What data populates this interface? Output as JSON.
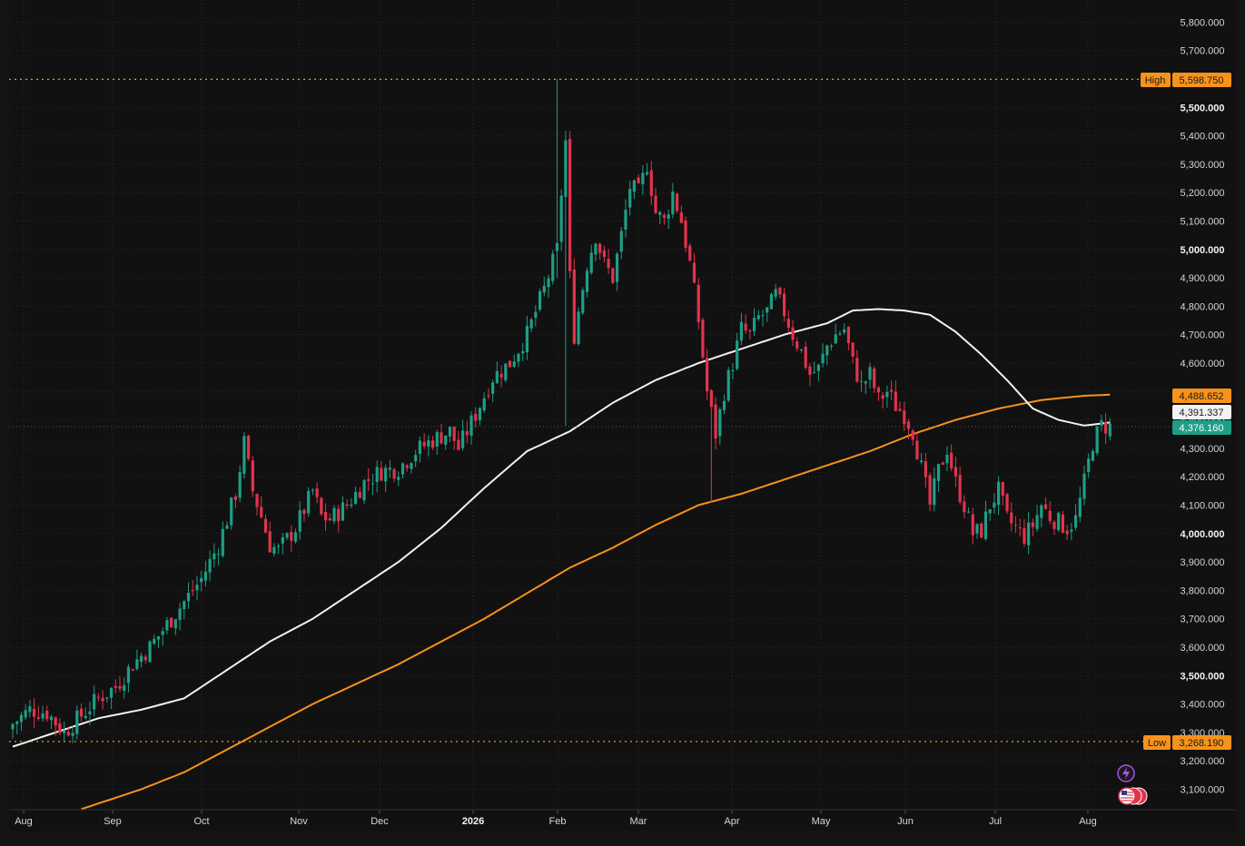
{
  "colors": {
    "background": "#141414",
    "plot_background": "#111111",
    "grid": "#2a2a2a",
    "up": "#1e9e85",
    "down": "#e2334d",
    "ma_fast": "#f2f2f2",
    "ma_slow": "#f7931a",
    "high_low_line": "#f7931a",
    "last_price_badge": "#1e9e85"
  },
  "icons": [
    "lightning-icon",
    "us-flag-icon"
  ],
  "badges": {
    "high_label": "High",
    "high_value": "5,598.750",
    "low_label": "Low",
    "low_value": "3,268.190",
    "ma_slow_value": "4,488.652",
    "ma_fast_value": "4,391.337",
    "last_value": "4,376.160"
  },
  "chart_data": {
    "type": "candlestick",
    "x_ticks": [
      "Aug",
      "Sep",
      "Oct",
      "Nov",
      "Dec",
      "2026",
      "Feb",
      "Mar",
      "Apr",
      "May",
      "Jun",
      "Jul",
      "Aug"
    ],
    "y_ticks": [
      "3,100.000",
      "3,200.000",
      "3,300.000",
      "3,400.000",
      "3,500.000",
      "3,600.000",
      "3,700.000",
      "3,800.000",
      "3,900.000",
      "4,000.000",
      "4,100.000",
      "4,200.000",
      "4,300.000",
      "4,400.000",
      "4,500.000",
      "4,600.000",
      "4,700.000",
      "4,800.000",
      "4,900.000",
      "5,000.000",
      "5,100.000",
      "5,200.000",
      "5,300.000",
      "5,400.000",
      "5,500.000",
      "5,600.000",
      "5,700.000",
      "5,800.000"
    ],
    "bold_y_ticks": [
      "3,500.000",
      "4,000.000",
      "5,000.000",
      "5,500.000"
    ],
    "ylim": [
      3030,
      5850
    ],
    "high": 5598.75,
    "low": 3268.19,
    "last": 4376.16,
    "close_path": [
      [
        0,
        3330
      ],
      [
        4,
        3380
      ],
      [
        8,
        3370
      ],
      [
        12,
        3300
      ],
      [
        16,
        3360
      ],
      [
        20,
        3420
      ],
      [
        24,
        3460
      ],
      [
        28,
        3540
      ],
      [
        32,
        3600
      ],
      [
        36,
        3680
      ],
      [
        40,
        3760
      ],
      [
        44,
        3840
      ],
      [
        48,
        3960
      ],
      [
        52,
        4140
      ],
      [
        54,
        4320
      ],
      [
        56,
        4150
      ],
      [
        58,
        4060
      ],
      [
        60,
        3960
      ],
      [
        62,
        3940
      ],
      [
        66,
        4020
      ],
      [
        70,
        4150
      ],
      [
        72,
        4060
      ],
      [
        74,
        4050
      ],
      [
        78,
        4100
      ],
      [
        82,
        4180
      ],
      [
        86,
        4220
      ],
      [
        90,
        4230
      ],
      [
        94,
        4290
      ],
      [
        98,
        4330
      ],
      [
        102,
        4360
      ],
      [
        104,
        4300
      ],
      [
        108,
        4420
      ],
      [
        112,
        4550
      ],
      [
        116,
        4600
      ],
      [
        120,
        4700
      ],
      [
        124,
        4860
      ],
      [
        127,
        5000
      ],
      [
        128,
        5200
      ],
      [
        129,
        5380
      ],
      [
        130,
        4900
      ],
      [
        131,
        4700
      ],
      [
        134,
        4950
      ],
      [
        136,
        5050
      ],
      [
        138,
        4950
      ],
      [
        140,
        4900
      ],
      [
        142,
        5050
      ],
      [
        144,
        5220
      ],
      [
        146,
        5200
      ],
      [
        148,
        5300
      ],
      [
        150,
        5130
      ],
      [
        152,
        5100
      ],
      [
        154,
        5200
      ],
      [
        156,
        5100
      ],
      [
        158,
        4950
      ],
      [
        160,
        4750
      ],
      [
        162,
        4500
      ],
      [
        164,
        4350
      ],
      [
        166,
        4500
      ],
      [
        168,
        4600
      ],
      [
        170,
        4720
      ],
      [
        172,
        4700
      ],
      [
        174,
        4760
      ],
      [
        176,
        4780
      ],
      [
        178,
        4840
      ],
      [
        180,
        4780
      ],
      [
        182,
        4700
      ],
      [
        184,
        4640
      ],
      [
        186,
        4560
      ],
      [
        188,
        4580
      ],
      [
        190,
        4660
      ],
      [
        192,
        4700
      ],
      [
        194,
        4720
      ],
      [
        196,
        4600
      ],
      [
        198,
        4520
      ],
      [
        200,
        4560
      ],
      [
        202,
        4470
      ],
      [
        204,
        4500
      ],
      [
        206,
        4450
      ],
      [
        208,
        4420
      ],
      [
        210,
        4360
      ],
      [
        212,
        4230
      ],
      [
        214,
        4100
      ],
      [
        216,
        4220
      ],
      [
        218,
        4300
      ],
      [
        220,
        4180
      ],
      [
        222,
        4100
      ],
      [
        224,
        4000
      ],
      [
        226,
        4010
      ],
      [
        228,
        4100
      ],
      [
        230,
        4150
      ],
      [
        232,
        4050
      ],
      [
        234,
        4020
      ],
      [
        236,
        3990
      ],
      [
        238,
        4030
      ],
      [
        240,
        4100
      ],
      [
        242,
        4060
      ],
      [
        244,
        4040
      ],
      [
        246,
        4020
      ],
      [
        248,
        4050
      ],
      [
        250,
        4180
      ],
      [
        252,
        4320
      ],
      [
        254,
        4380
      ],
      [
        256,
        4376
      ]
    ],
    "ma_fast_path": [
      [
        0,
        3250
      ],
      [
        10,
        3300
      ],
      [
        20,
        3350
      ],
      [
        30,
        3380
      ],
      [
        40,
        3420
      ],
      [
        50,
        3520
      ],
      [
        60,
        3620
      ],
      [
        70,
        3700
      ],
      [
        80,
        3800
      ],
      [
        90,
        3900
      ],
      [
        100,
        4020
      ],
      [
        110,
        4160
      ],
      [
        120,
        4290
      ],
      [
        130,
        4360
      ],
      [
        140,
        4460
      ],
      [
        150,
        4540
      ],
      [
        160,
        4600
      ],
      [
        170,
        4650
      ],
      [
        180,
        4700
      ],
      [
        190,
        4740
      ],
      [
        196,
        4785
      ],
      [
        202,
        4790
      ],
      [
        208,
        4785
      ],
      [
        214,
        4770
      ],
      [
        220,
        4710
      ],
      [
        226,
        4630
      ],
      [
        232,
        4540
      ],
      [
        238,
        4440
      ],
      [
        244,
        4400
      ],
      [
        250,
        4380
      ],
      [
        256,
        4391
      ]
    ],
    "ma_slow_path": [
      [
        16,
        3030
      ],
      [
        30,
        3100
      ],
      [
        40,
        3160
      ],
      [
        50,
        3240
      ],
      [
        60,
        3320
      ],
      [
        70,
        3400
      ],
      [
        80,
        3470
      ],
      [
        90,
        3540
      ],
      [
        100,
        3620
      ],
      [
        110,
        3700
      ],
      [
        120,
        3790
      ],
      [
        130,
        3880
      ],
      [
        140,
        3950
      ],
      [
        150,
        4030
      ],
      [
        160,
        4100
      ],
      [
        170,
        4140
      ],
      [
        180,
        4190
      ],
      [
        190,
        4240
      ],
      [
        200,
        4290
      ],
      [
        210,
        4350
      ],
      [
        220,
        4400
      ],
      [
        230,
        4440
      ],
      [
        240,
        4470
      ],
      [
        250,
        4485
      ],
      [
        256,
        4489
      ]
    ],
    "series": [
      {
        "name": "",
        "type": "candlestick"
      },
      {
        "name": "",
        "type": "line",
        "last_value": 4391.337
      },
      {
        "name": "",
        "type": "line",
        "last_value": 4488.652
      }
    ]
  }
}
